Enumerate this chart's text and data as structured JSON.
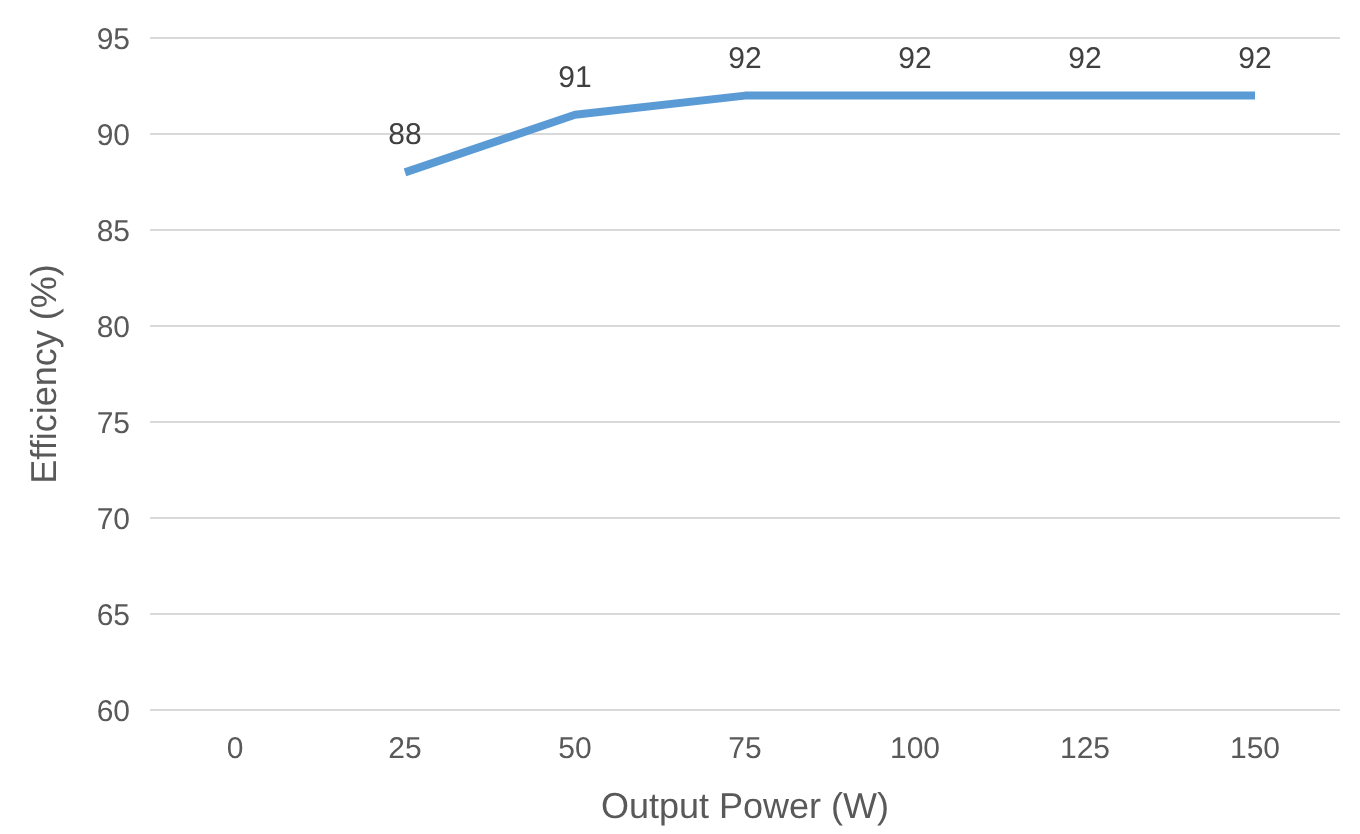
{
  "chart_data": {
    "type": "line",
    "xlabel": "Output Power (W)",
    "ylabel": "Efficiency (%)",
    "categories": [
      "0",
      "25",
      "50",
      "75",
      "100",
      "125",
      "150"
    ],
    "series": [
      {
        "color": "#5b9bd5",
        "values": [
          null,
          88,
          91,
          92,
          92,
          92,
          92
        ]
      }
    ],
    "ylim": [
      60,
      95
    ],
    "yticks": [
      60,
      65,
      70,
      75,
      80,
      85,
      90,
      95
    ],
    "grid": "y",
    "data_labels": true,
    "marker": "none"
  }
}
